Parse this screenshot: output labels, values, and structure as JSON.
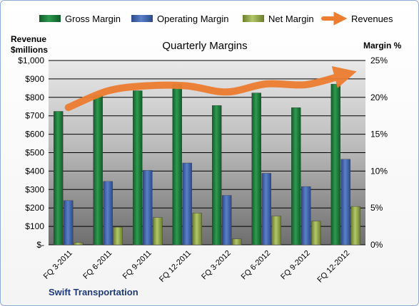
{
  "chart_data": {
    "type": "bar",
    "title": "Quarterly Margins",
    "company": "Swift Transportation",
    "left_axis_label_line1": "Revenue",
    "left_axis_label_line2": "$millions",
    "right_axis_label": "Margin %",
    "categories": [
      "FQ 3-2011",
      "FQ 6-2011",
      "FQ 9-2011",
      "FQ 12-2011",
      "FQ 3-2012",
      "FQ 6-2012",
      "FQ 9-2012",
      "FQ 12-2012"
    ],
    "left_axis": {
      "min": 0,
      "max": 1000,
      "step": 100,
      "tick_labels": [
        "$-",
        "$100",
        "$200",
        "$300",
        "$400",
        "$500",
        "$600",
        "$700",
        "$800",
        "$900",
        "$1,000"
      ]
    },
    "right_axis": {
      "min": 0,
      "max": 25,
      "step": 5,
      "tick_labels": [
        "0%",
        "5%",
        "10%",
        "15%",
        "20%",
        "25%"
      ]
    },
    "grid": true,
    "legend_position": "top",
    "series": [
      {
        "name": "Gross Margin",
        "type": "bar",
        "axis": "right",
        "color": "#1e7a3c",
        "values": [
          18.1,
          20.3,
          20.9,
          21.8,
          18.9,
          20.6,
          18.6,
          21.8
        ]
      },
      {
        "name": "Operating Margin",
        "type": "bar",
        "axis": "right",
        "color": "#3b5fa8",
        "values": [
          6.0,
          8.6,
          10.1,
          11.1,
          6.7,
          9.7,
          7.9,
          11.6
        ]
      },
      {
        "name": "Net Margin",
        "type": "bar",
        "axis": "right",
        "color": "#8fa646",
        "values": [
          0.3,
          2.4,
          3.7,
          4.3,
          0.8,
          3.9,
          3.2,
          5.2
        ]
      },
      {
        "name": "Revenues",
        "type": "line",
        "axis": "left",
        "color": "#ed7d31",
        "values": [
          745,
          835,
          863,
          862,
          829,
          873,
          869,
          925
        ]
      }
    ]
  }
}
